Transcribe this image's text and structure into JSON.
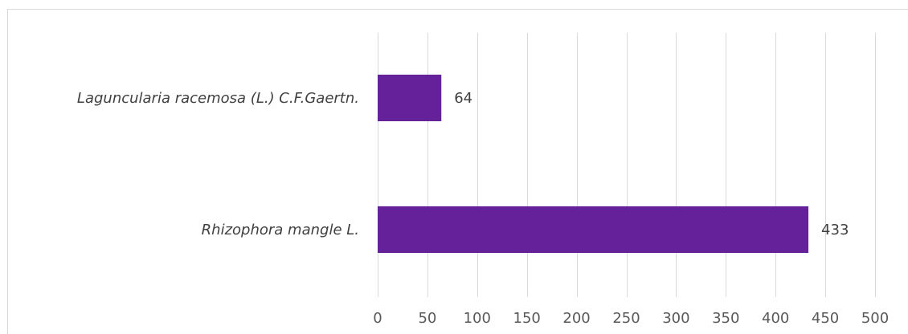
{
  "chart_data": {
    "type": "bar",
    "orientation": "horizontal",
    "categories": [
      "Laguncularia racemosa (L.) C.F.Gaertn.",
      "Rhizophora mangle L."
    ],
    "values": [
      64,
      433
    ],
    "data_labels": [
      "64",
      "433"
    ],
    "xlim": [
      0,
      500
    ],
    "xticks": [
      0,
      50,
      100,
      150,
      200,
      250,
      300,
      350,
      400,
      450,
      500
    ],
    "tick_labels": [
      "0",
      "50",
      "100",
      "150",
      "200",
      "250",
      "300",
      "350",
      "400",
      "450",
      "500"
    ],
    "grid": true,
    "legend": "none",
    "bar_color": "#65219a"
  }
}
